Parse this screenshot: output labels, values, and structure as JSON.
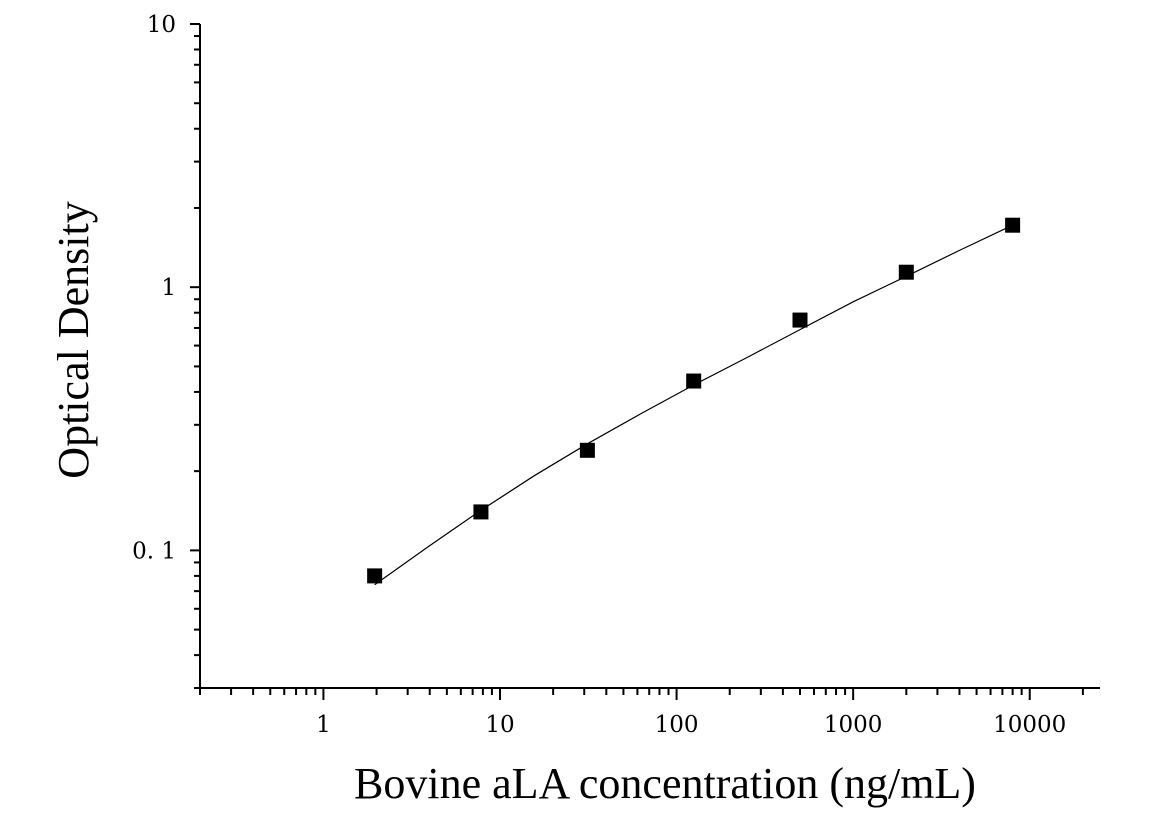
{
  "chart_data": {
    "type": "scatter",
    "title": "",
    "xlabel": "Bovine aLA concentration (ng/mL)",
    "ylabel": "Optical Density",
    "xscale": "log",
    "yscale": "log",
    "xlim": [
      0.2,
      25000
    ],
    "ylim": [
      0.03,
      10
    ],
    "x_tick_labels": [
      "1",
      "10",
      "100",
      "1000",
      "10000"
    ],
    "y_tick_labels": [
      "0. 1",
      "1",
      "10"
    ],
    "grid": false,
    "legend": "none",
    "series": [
      {
        "marker": "square",
        "color": "#000000",
        "x": [
          1.95,
          7.8,
          31.25,
          125,
          500,
          2000,
          8000
        ],
        "y": [
          0.08,
          0.14,
          0.24,
          0.44,
          0.75,
          1.14,
          1.72
        ]
      }
    ],
    "fit_line": {
      "color": "#000000",
      "x": [
        1.95,
        3.9,
        7.8,
        15.6,
        31.25,
        62.5,
        125,
        250,
        500,
        1000,
        2000,
        4000,
        8000
      ],
      "y": [
        0.074,
        0.103,
        0.142,
        0.192,
        0.254,
        0.33,
        0.425,
        0.54,
        0.69,
        0.88,
        1.1,
        1.38,
        1.72
      ]
    }
  }
}
